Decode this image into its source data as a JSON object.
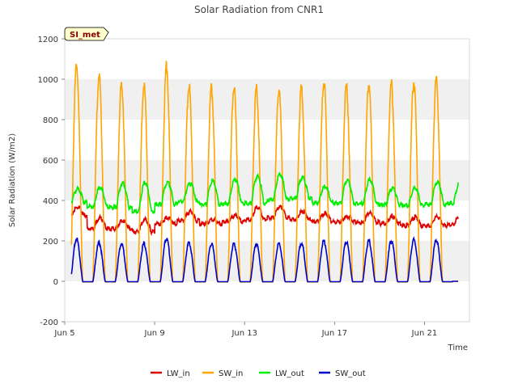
{
  "chart_data": {
    "type": "line",
    "title": "Solar Radiation from CNR1",
    "xlabel": "Time",
    "ylabel": "Solar Radiation (W/m2)",
    "badge": "SI_met",
    "ylim": [
      -200,
      1200
    ],
    "yticks": [
      -200,
      0,
      200,
      400,
      600,
      800,
      1000,
      1200
    ],
    "xlim": [
      "2024-06-05",
      "2024-06-23"
    ],
    "xticks": [
      {
        "value": "2024-06-05",
        "label": "Jun 5"
      },
      {
        "value": "2024-06-09",
        "label": "Jun 9"
      },
      {
        "value": "2024-06-13",
        "label": "Jun 13"
      },
      {
        "value": "2024-06-17",
        "label": "Jun 17"
      },
      {
        "value": "2024-06-21",
        "label": "Jun 21"
      }
    ],
    "grid": "horizontal bands",
    "legend_position": "bottom",
    "days": [
      "Jun 5",
      "Jun 6",
      "Jun 7",
      "Jun 8",
      "Jun 9",
      "Jun 10",
      "Jun 11",
      "Jun 12",
      "Jun 13",
      "Jun 14",
      "Jun 15",
      "Jun 16",
      "Jun 17",
      "Jun 18",
      "Jun 19",
      "Jun 20",
      "Jun 21",
      "Jun 22"
    ],
    "series": [
      {
        "name": "LW_in",
        "color": "#dd0000",
        "kind": "longwave_in",
        "daily_min": [
          330,
          265,
          265,
          250,
          290,
          305,
          290,
          300,
          310,
          320,
          310,
          300,
          300,
          295,
          290,
          280,
          280,
          285
        ],
        "daily_peak": [
          370,
          320,
          305,
          310,
          320,
          350,
          310,
          330,
          370,
          375,
          350,
          340,
          325,
          345,
          325,
          320,
          325,
          325
        ]
      },
      {
        "name": "SW_in",
        "color": "#ffa500",
        "kind": "shortwave_in",
        "daily_peak": [
          1100,
          1050,
          1005,
          1000,
          1095,
          1000,
          985,
          990,
          980,
          980,
          985,
          1020,
          995,
          1010,
          1005,
          1015,
          1025,
          0
        ]
      },
      {
        "name": "LW_out",
        "color": "#00ee00",
        "kind": "longwave_out",
        "daily_min": [
          395,
          375,
          370,
          350,
          385,
          400,
          385,
          390,
          390,
          410,
          415,
          395,
          390,
          390,
          385,
          380,
          385,
          390
        ],
        "daily_peak": [
          460,
          470,
          490,
          495,
          495,
          490,
          500,
          510,
          525,
          535,
          520,
          475,
          505,
          510,
          465,
          465,
          495,
          495
        ]
      },
      {
        "name": "SW_out",
        "color": "#0000cc",
        "kind": "shortwave_out",
        "daily_peak": [
          220,
          200,
          195,
          195,
          225,
          200,
          195,
          195,
          195,
          195,
          200,
          210,
          205,
          210,
          210,
          215,
          215,
          0
        ]
      }
    ]
  }
}
